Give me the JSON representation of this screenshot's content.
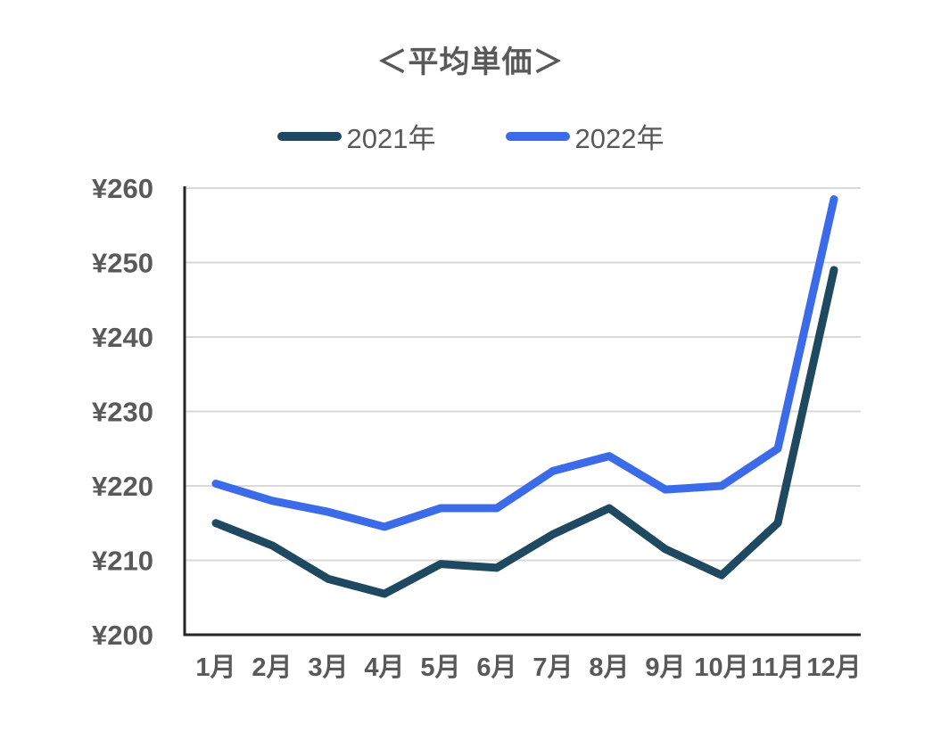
{
  "title": "＜平均単価＞",
  "colors": {
    "text": "#595959",
    "gridline": "#D9D9D9",
    "axis": "#262626",
    "series_2021": "#1F4961",
    "series_2022": "#3C6BEA"
  },
  "chart_data": {
    "type": "line",
    "title": "＜平均単価＞",
    "categories": [
      "1月",
      "2月",
      "3月",
      "4月",
      "5月",
      "6月",
      "7月",
      "8月",
      "9月",
      "10月",
      "11月",
      "12月"
    ],
    "series": [
      {
        "name": "2021年",
        "color": "#1F4961",
        "values": [
          215,
          212,
          207.5,
          205.5,
          209.5,
          209,
          213.5,
          217,
          211.5,
          208,
          215,
          249
        ]
      },
      {
        "name": "2022年",
        "color": "#3C6BEA",
        "values": [
          220.3,
          218,
          216.5,
          214.5,
          217,
          217,
          222,
          224,
          219.5,
          220,
          225,
          258.5
        ]
      }
    ],
    "xlabel": "",
    "ylabel": "",
    "ylim": [
      200,
      260
    ],
    "ytick_step": 10,
    "ytick_prefix": "¥",
    "grid": true,
    "legend_position": "top"
  }
}
